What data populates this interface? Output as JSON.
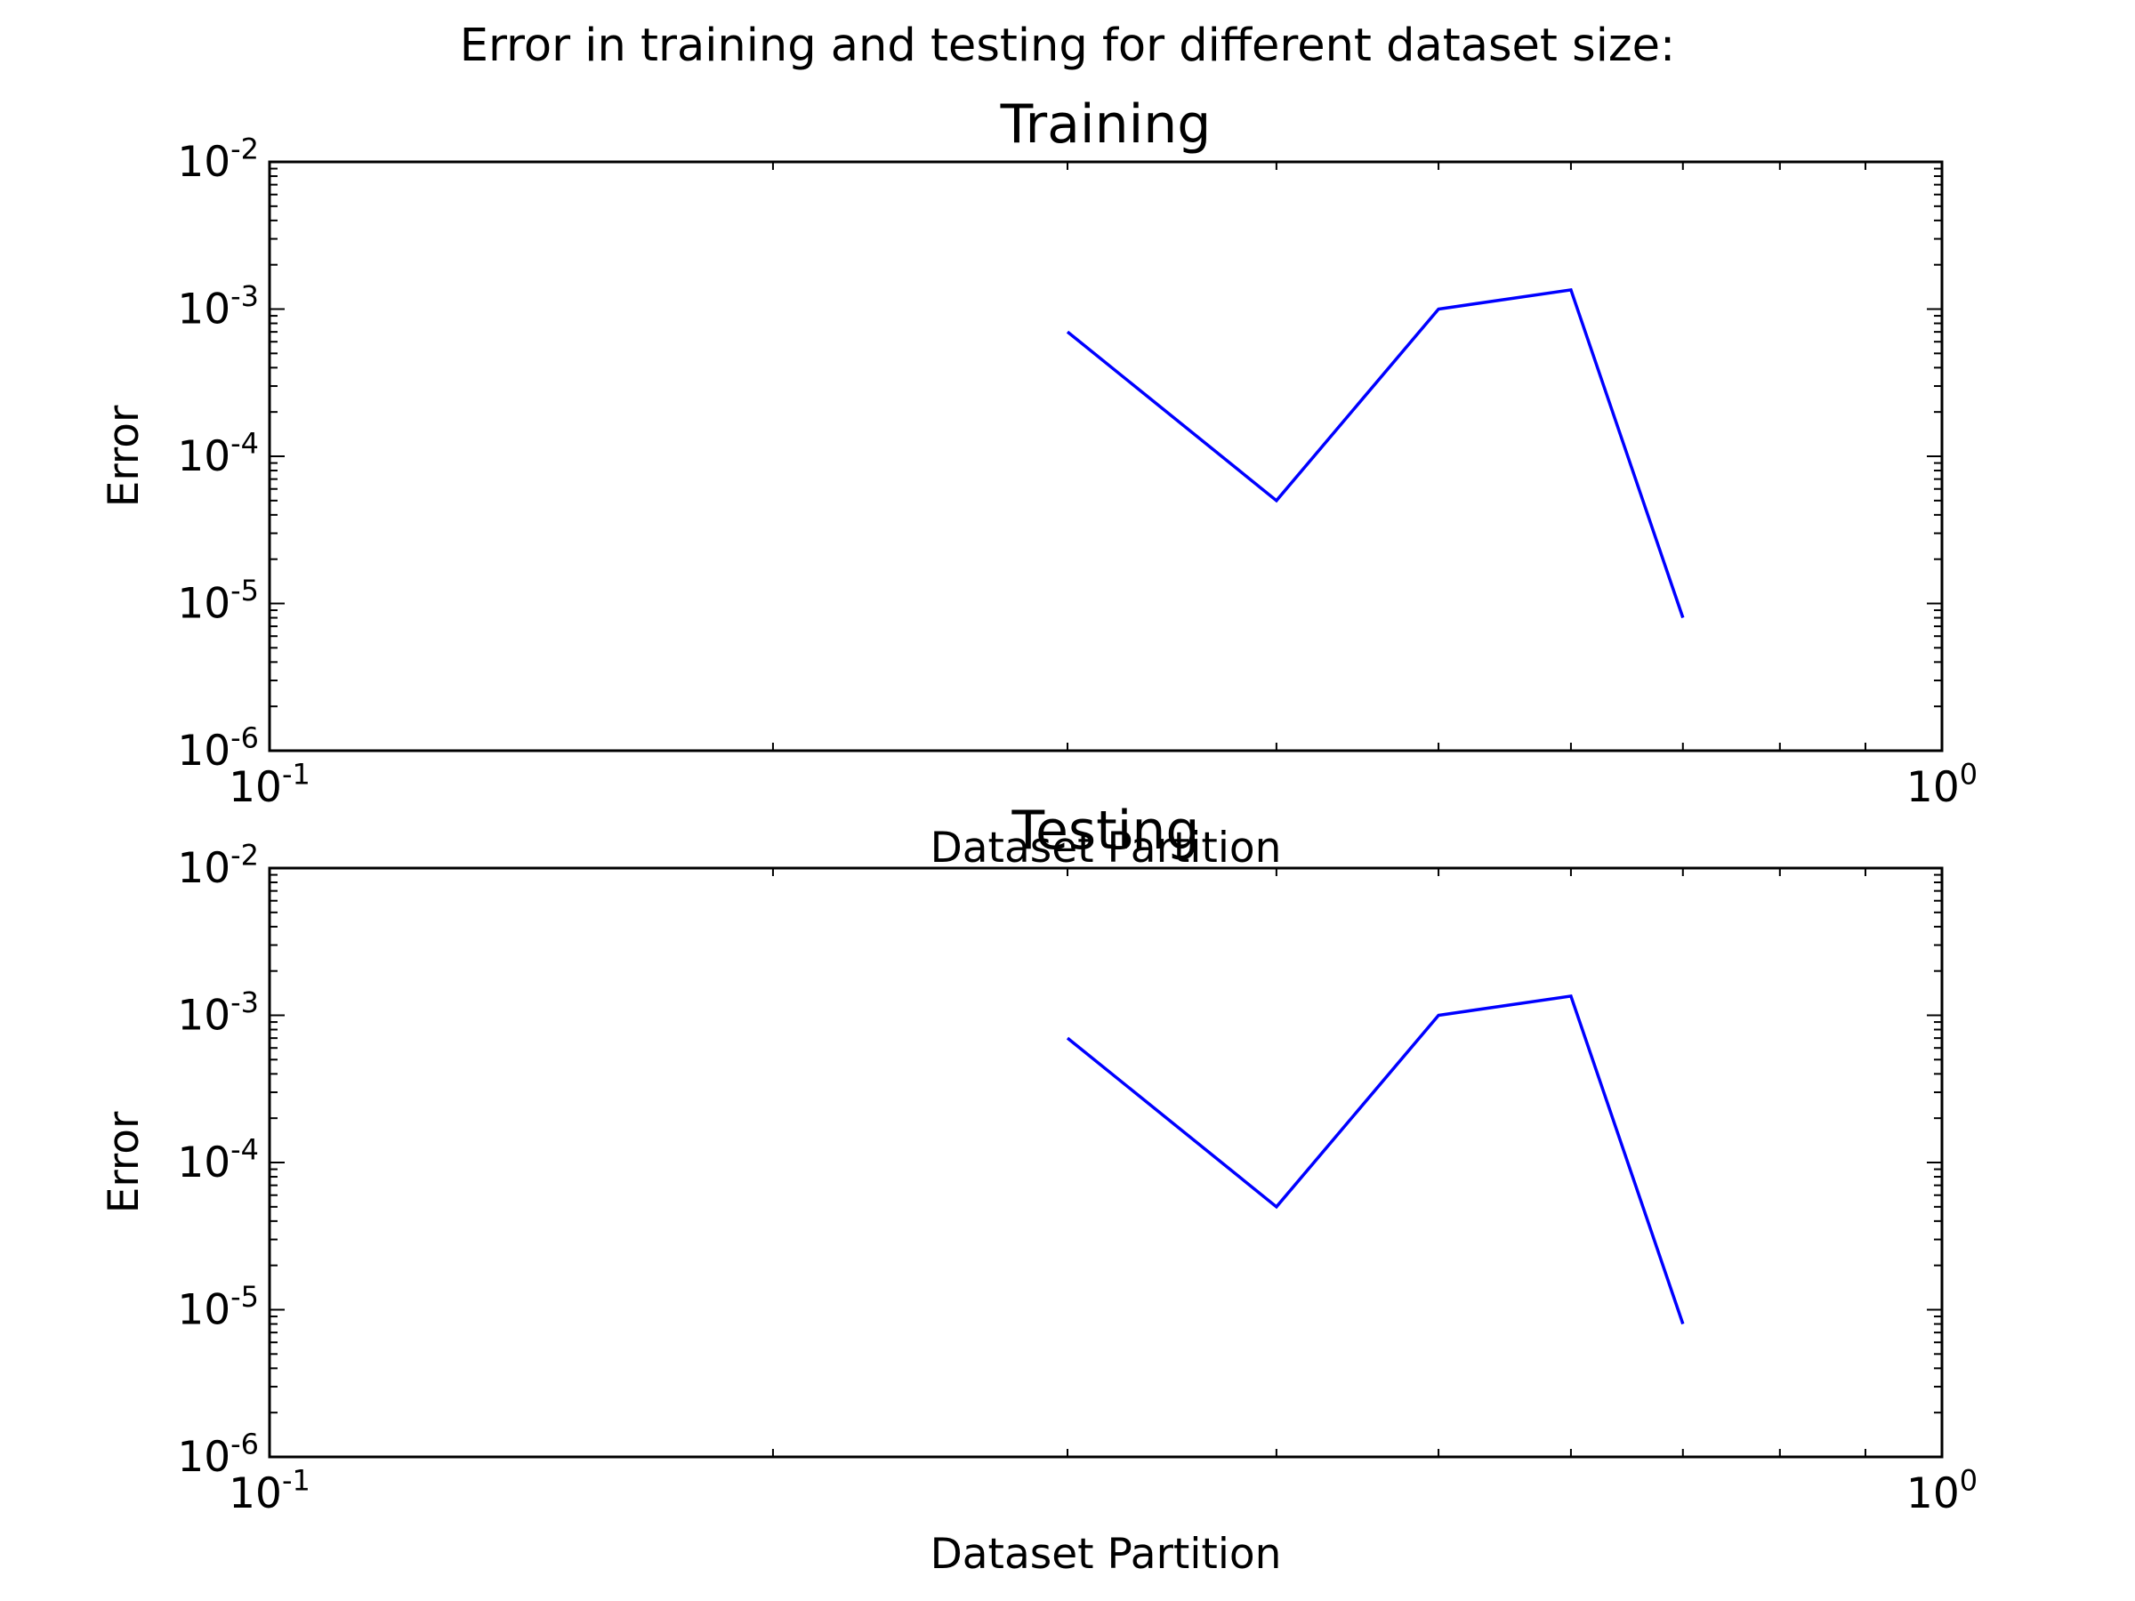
{
  "figure": {
    "suptitle": "Error in training and testing for different dataset size:"
  },
  "chart_data": [
    {
      "type": "line",
      "title": "Training",
      "xlabel": "Dataset Partition",
      "ylabel": "Error",
      "xscale": "log",
      "yscale": "log",
      "xlim": [
        0.1,
        1.0
      ],
      "ylim": [
        1e-06,
        0.01
      ],
      "x_ticks": [
        {
          "value": 0.1,
          "base": "10",
          "exp": "-1"
        },
        {
          "value": 1.0,
          "base": "10",
          "exp": "0"
        }
      ],
      "y_ticks": [
        {
          "value": 1e-06,
          "base": "10",
          "exp": "-6"
        },
        {
          "value": 1e-05,
          "base": "10",
          "exp": "-5"
        },
        {
          "value": 0.0001,
          "base": "10",
          "exp": "-4"
        },
        {
          "value": 0.001,
          "base": "10",
          "exp": "-3"
        },
        {
          "value": 0.01,
          "base": "10",
          "exp": "-2"
        }
      ],
      "grid": false,
      "series": [
        {
          "color": "#0000ff",
          "x": [
            0.3,
            0.4,
            0.5,
            0.6,
            0.7
          ],
          "y": [
            0.0007,
            5e-05,
            0.001,
            0.00135,
            8e-06
          ]
        }
      ]
    },
    {
      "type": "line",
      "title": "Testing",
      "xlabel": "Dataset Partition",
      "ylabel": "Error",
      "xscale": "log",
      "yscale": "log",
      "xlim": [
        0.1,
        1.0
      ],
      "ylim": [
        1e-06,
        0.01
      ],
      "x_ticks": [
        {
          "value": 0.1,
          "base": "10",
          "exp": "-1"
        },
        {
          "value": 1.0,
          "base": "10",
          "exp": "0"
        }
      ],
      "y_ticks": [
        {
          "value": 1e-06,
          "base": "10",
          "exp": "-6"
        },
        {
          "value": 1e-05,
          "base": "10",
          "exp": "-5"
        },
        {
          "value": 0.0001,
          "base": "10",
          "exp": "-4"
        },
        {
          "value": 0.001,
          "base": "10",
          "exp": "-3"
        },
        {
          "value": 0.01,
          "base": "10",
          "exp": "-2"
        }
      ],
      "grid": false,
      "series": [
        {
          "color": "#0000ff",
          "x": [
            0.3,
            0.4,
            0.5,
            0.6,
            0.7
          ],
          "y": [
            0.0007,
            5e-05,
            0.001,
            0.00135,
            8e-06
          ]
        }
      ]
    }
  ]
}
